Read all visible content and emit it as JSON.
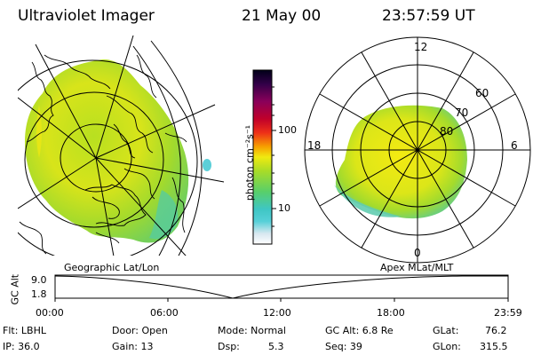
{
  "header": {
    "title": "Ultraviolet Imager",
    "date": "21 May 00",
    "time": "23:57:59 UT"
  },
  "colorbar": {
    "unit_label": "photon cm⁻²s⁻¹",
    "tick_100": "100",
    "tick_10": "10"
  },
  "polar_plot": {
    "mlt_labels": {
      "top": "12",
      "right": "6",
      "left": "18",
      "bottom": "0"
    },
    "lat_labels": {
      "l60": "60",
      "l70": "70",
      "l80": "80"
    }
  },
  "panels": {
    "geo_label": "Geographic Lat/Lon",
    "apex_label": "Apex MLat/MLT"
  },
  "orbit": {
    "axis_label": "GC Alt",
    "y_top": "9.0",
    "y_bottom": "1.8",
    "time_ticks": [
      "00:00",
      "06:00",
      "12:00",
      "18:00",
      "23:59"
    ]
  },
  "info": {
    "flt": "Flt: LBHL",
    "ip": "IP: 36.0",
    "door": "Door: Open",
    "gain": "Gain: 13",
    "mode": "Mode: Normal",
    "dsp_label": "Dsp:",
    "dsp_value": "5.3",
    "gc_alt": "GC Alt: 6.8 Re",
    "seq": "Seq: 39",
    "glat_label": "GLat:",
    "glat_value": "76.2",
    "glon_label": "GLon:",
    "glon_value": "315.5"
  },
  "colors": {
    "aurora_green": "#9bd830",
    "aurora_yellow": "#f2ea10",
    "aurora_cyan": "#5ccfd8"
  }
}
